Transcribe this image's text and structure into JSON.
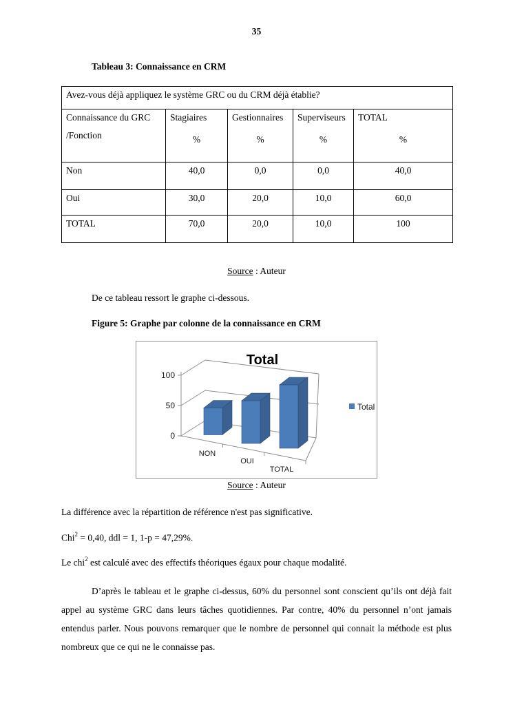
{
  "page": {
    "number": "35"
  },
  "table_section": {
    "caption": "Tableau 3: Connaissance en CRM",
    "table": {
      "question": "Avez-vous déjà appliquez le système GRC ou du CRM déjà établie?",
      "row_header_line1": "Connaissance du GRC",
      "row_header_line2": "/Fonction",
      "columns": [
        {
          "name": "Stagiaires",
          "unit": "%"
        },
        {
          "name": "Gestionnaires",
          "unit": "%"
        },
        {
          "name": "Superviseurs",
          "unit": "%"
        },
        {
          "name": "TOTAL",
          "unit": "%"
        }
      ],
      "rows": [
        {
          "label": "Non",
          "values": [
            "40,0",
            "0,0",
            "0,0",
            "40,0"
          ]
        },
        {
          "label": "Oui",
          "values": [
            "30,0",
            "20,0",
            "10,0",
            "60,0"
          ]
        },
        {
          "label": "TOTAL",
          "values": [
            "70,0",
            "20,0",
            "10,0",
            "100"
          ]
        }
      ]
    },
    "source_label": "Source",
    "source_suffix": " : Auteur"
  },
  "intro_text": "De ce tableau ressort le graphe ci-dessous.",
  "figure_section": {
    "caption": "Figure 5: Graphe par colonne de la connaissance en CRM",
    "source_label": "Source",
    "source_suffix": " : Auteur"
  },
  "chart_data": {
    "type": "bar",
    "subtype": "3d-column",
    "title": "Total",
    "categories": [
      "NON",
      "OUI",
      "TOTAL"
    ],
    "series": [
      {
        "name": "Total",
        "values": [
          40,
          60,
          100
        ]
      }
    ],
    "yticks": [
      0,
      50,
      100
    ],
    "ylim": [
      0,
      100
    ],
    "legend_position": "right",
    "grid": true,
    "bar_color": "#4C7DBB",
    "bar_top_color": "#3E699E",
    "bar_side_color": "#3A6191"
  },
  "analysis": {
    "line1": "La différence avec la répartition de référence n'est pas significative.",
    "chi_line": {
      "prefix": "Chi",
      "sup": "2",
      "rest": " = 0,40, ddl = 1, 1-p = 47,29%."
    },
    "line3": {
      "prefix": "Le chi",
      "sup": "2",
      "rest": " est calculé avec des effectifs théoriques égaux pour chaque modalité."
    },
    "paragraph": "D’après le tableau et le graphe ci-dessus, 60% du personnel sont conscient qu’ils ont déjà fait appel au système GRC dans leurs tâches quotidiennes. Par contre, 40% du personnel n’ont jamais entendus parler. Nous pouvons remarquer que le nombre de personnel qui connait la méthode est plus nombreux que ce qui ne le connaisse pas."
  }
}
